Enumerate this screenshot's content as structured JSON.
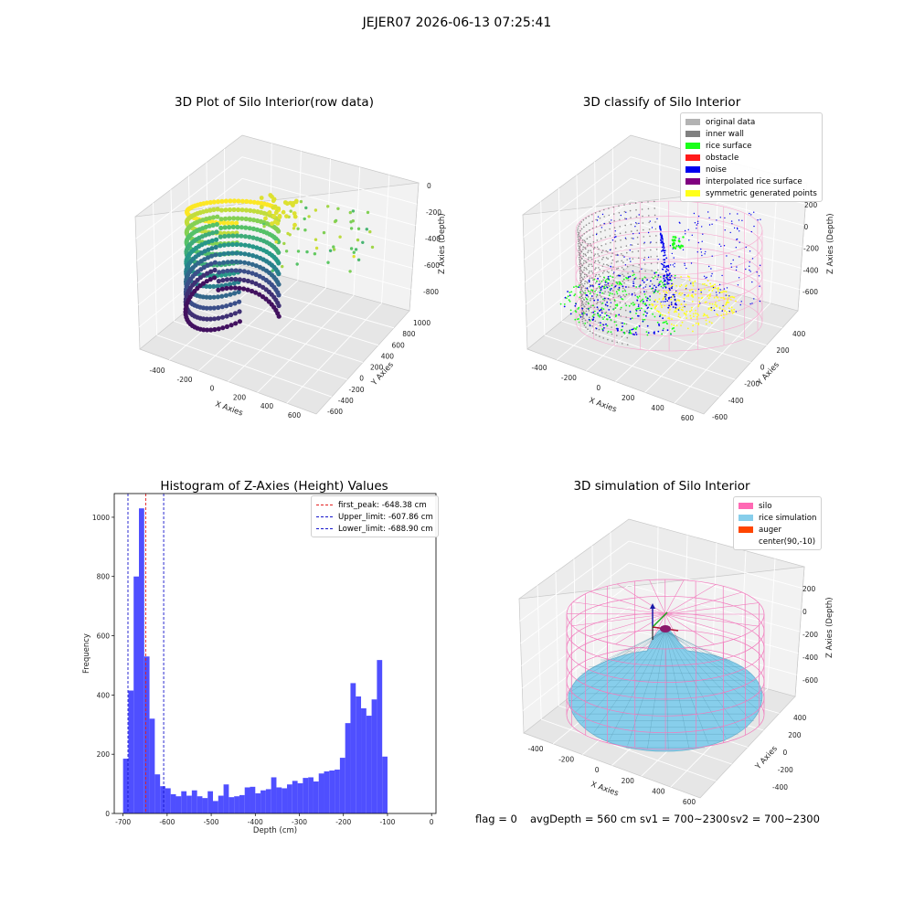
{
  "figure_title": "JEJER07 2026-06-13 07:25:41",
  "panels": {
    "raw": {
      "title": "3D Plot of Silo Interior(row data)",
      "xlabel": "X Axies",
      "ylabel": "Y Axies",
      "zlabel": "Z Axies (Depth)",
      "x_ticks": [
        "-400",
        "-200",
        "0",
        "200",
        "400",
        "600"
      ],
      "y_ticks": [
        "-600",
        "-400",
        "-200",
        "0",
        "200",
        "400",
        "600",
        "800",
        "1000"
      ],
      "z_ticks": [
        "0",
        "-200",
        "-400",
        "-600",
        "-800"
      ]
    },
    "classify": {
      "title": "3D classify of Silo Interior",
      "xlabel": "X Axies",
      "ylabel": "Y Axies",
      "zlabel": "Z Axies (Depth)",
      "x_ticks": [
        "-400",
        "-200",
        "0",
        "200",
        "400",
        "600"
      ],
      "y_ticks": [
        "-600",
        "-400",
        "-200",
        "0",
        "200",
        "400"
      ],
      "z_ticks": [
        "200",
        "0",
        "-200",
        "-400",
        "-600"
      ],
      "legend": [
        {
          "label": "original data",
          "color": "#b3b3b3"
        },
        {
          "label": "inner wall",
          "color": "#808080"
        },
        {
          "label": "rice surface",
          "color": "#19ff19"
        },
        {
          "label": "obstacle",
          "color": "#ff1a1a"
        },
        {
          "label": "noise",
          "color": "#0000ee"
        },
        {
          "label": "interpolated rice surface",
          "color": "#800080"
        },
        {
          "label": "symmetric generated points",
          "color": "#ffff19"
        }
      ]
    },
    "simulation": {
      "title": "3D simulation of Silo Interior",
      "xlabel": "X Axies",
      "ylabel": "Y Axies",
      "zlabel": "Z Axies (Depth)",
      "x_ticks": [
        "-400",
        "-200",
        "0",
        "200",
        "400",
        "600"
      ],
      "y_ticks": [
        "-400",
        "-200",
        "0",
        "200",
        "400"
      ],
      "z_ticks": [
        "200",
        "0",
        "-200",
        "-400",
        "-600"
      ],
      "legend": [
        {
          "label": "silo",
          "color": "#ff69b4"
        },
        {
          "label": "rice simulation",
          "color": "#87ceeb"
        },
        {
          "label": "auger",
          "color": "#ff4500"
        },
        {
          "label": "center(90,-10)",
          "color": "#ffffff"
        }
      ]
    }
  },
  "status": {
    "flag": "flag = 0",
    "avg_depth": "avgDepth = 560 cm",
    "sv1": "sv1 = 700~2300",
    "sv2": "sv2 = 700~2300"
  },
  "chart_data": {
    "type": "bar",
    "title": "Histogram of Z-Axies (Height) Values",
    "xlabel": "Depth (cm)",
    "ylabel": "Frequency",
    "xlim": [
      -720,
      10
    ],
    "ylim": [
      0,
      1080
    ],
    "x_ticks": [
      -700,
      -600,
      -500,
      -400,
      -300,
      -200,
      -100,
      0
    ],
    "y_ticks": [
      0,
      200,
      400,
      600,
      800,
      1000
    ],
    "bin_start": -700,
    "bin_width": 12,
    "values": [
      185,
      415,
      800,
      1030,
      530,
      320,
      132,
      92,
      85,
      65,
      58,
      75,
      60,
      78,
      58,
      52,
      75,
      42,
      60,
      98,
      55,
      58,
      62,
      88,
      90,
      68,
      78,
      82,
      122,
      88,
      85,
      98,
      110,
      102,
      120,
      122,
      108,
      135,
      142,
      145,
      148,
      188,
      305,
      440,
      395,
      355,
      330,
      385,
      518,
      192
    ],
    "color": "#4b4bff",
    "vlines": [
      {
        "label": "first_peak: -648.38 cm",
        "x": -648.38,
        "color": "#e52020"
      },
      {
        "label": "Upper_limit: -607.86 cm",
        "x": -607.86,
        "color": "#1515cc"
      },
      {
        "label": "Lower_limit: -688.90 cm",
        "x": -688.9,
        "color": "#1515cc"
      }
    ],
    "legend_position": "top-right"
  }
}
